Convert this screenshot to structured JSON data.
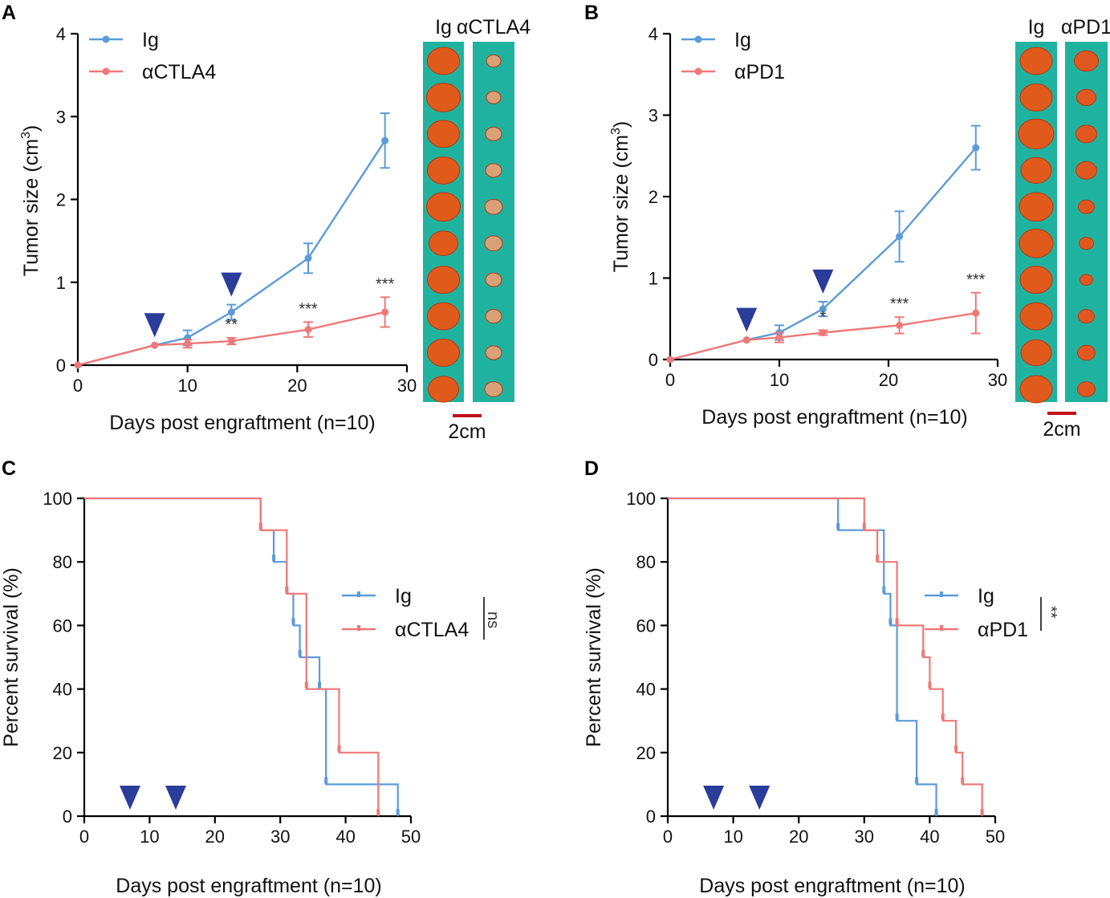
{
  "colors": {
    "ig": "#5b9bd8",
    "treat": "#f07878",
    "arrow": "#2a3d9a",
    "teal": "#1fb39f",
    "scalebar": "#c0101b",
    "tumor": "#e05a1c"
  },
  "panel_letters": {
    "a": "A",
    "b": "B",
    "c": "C",
    "d": "D"
  },
  "photos": [
    {
      "panel": "A",
      "labels": [
        "Ig",
        "αCTLA4"
      ],
      "scale_label": "2cm"
    },
    {
      "panel": "B",
      "labels": [
        "Ig",
        "αPD1"
      ],
      "scale_label": "2cm"
    }
  ],
  "chart_data": [
    {
      "panel": "A",
      "type": "line",
      "xlabel": "Days post engraftment (n=10)",
      "ylabel": "Tumor size (cm³)",
      "ylabel_main": "Tumor size (cm",
      "ylabel_sup": "3",
      "ylabel_end": ")",
      "xlim": [
        0,
        30
      ],
      "ylim": [
        0,
        4
      ],
      "xticks": [
        "0",
        "10",
        "20",
        "30"
      ],
      "yticks": [
        "0",
        "1",
        "2",
        "3",
        "4"
      ],
      "treatment_days": [
        7,
        14
      ],
      "legend": [
        "Ig",
        "αCTLA4"
      ],
      "series": [
        {
          "name": "Ig",
          "x": [
            0,
            7,
            10,
            14,
            21,
            28
          ],
          "y": [
            0,
            0.24,
            0.33,
            0.64,
            1.29,
            2.71
          ],
          "err": [
            0,
            0,
            0.09,
            0.09,
            0.18,
            0.33
          ]
        },
        {
          "name": "αCTLA4",
          "x": [
            0,
            7,
            10,
            14,
            21,
            28
          ],
          "y": [
            0,
            0.24,
            0.26,
            0.29,
            0.43,
            0.64
          ],
          "err": [
            0,
            0,
            0.05,
            0.04,
            0.09,
            0.18
          ]
        }
      ],
      "annotations": [
        {
          "x": 14,
          "text": "**"
        },
        {
          "x": 21,
          "text": "***"
        },
        {
          "x": 28,
          "text": "***"
        }
      ]
    },
    {
      "panel": "B",
      "type": "line",
      "xlabel": "Days post engraftment (n=10)",
      "ylabel": "Tumor size (cm³)",
      "ylabel_main": "Tumor size (cm",
      "ylabel_sup": "3",
      "ylabel_end": ")",
      "xlim": [
        0,
        30
      ],
      "ylim": [
        0,
        4
      ],
      "xticks": [
        "0",
        "10",
        "20",
        "30"
      ],
      "yticks": [
        "0",
        "1",
        "2",
        "3",
        "4"
      ],
      "treatment_days": [
        7,
        14
      ],
      "legend": [
        "Ig",
        "αPD1"
      ],
      "series": [
        {
          "name": "Ig",
          "x": [
            0,
            7,
            10,
            14,
            21,
            28
          ],
          "y": [
            0,
            0.24,
            0.33,
            0.62,
            1.51,
            2.6
          ],
          "err": [
            0,
            0,
            0.09,
            0.09,
            0.31,
            0.27
          ]
        },
        {
          "name": "αPD1",
          "x": [
            0,
            7,
            10,
            14,
            21,
            28
          ],
          "y": [
            0,
            0.24,
            0.27,
            0.33,
            0.42,
            0.57
          ],
          "err": [
            0,
            0,
            0.06,
            0.03,
            0.1,
            0.25
          ]
        }
      ],
      "annotations": [
        {
          "x": 14,
          "text": "*"
        },
        {
          "x": 21,
          "text": "***"
        },
        {
          "x": 28,
          "text": "***"
        }
      ]
    },
    {
      "panel": "C",
      "type": "survival",
      "xlabel": "Days post engraftment (n=10)",
      "ylabel": "Percent survival (%)",
      "xlim": [
        0,
        50
      ],
      "ylim": [
        0,
        100
      ],
      "xticks": [
        "0",
        "10",
        "20",
        "30",
        "40",
        "50"
      ],
      "yticks": [
        "0",
        "20",
        "40",
        "60",
        "80",
        "100"
      ],
      "treatment_days": [
        7,
        14
      ],
      "legend": [
        "Ig",
        "αCTLA4"
      ],
      "significance": "ns",
      "series": [
        {
          "name": "Ig",
          "times": [
            27,
            29,
            31,
            32,
            33,
            36,
            37,
            48
          ],
          "survival": [
            90,
            80,
            70,
            60,
            50,
            40,
            10,
            0
          ]
        },
        {
          "name": "αCTLA4",
          "times": [
            27,
            31,
            34,
            39,
            45
          ],
          "survival": [
            90,
            70,
            40,
            20,
            0
          ]
        }
      ]
    },
    {
      "panel": "D",
      "type": "survival",
      "xlabel": "Days post engraftment (n=10)",
      "ylabel": "Percent survival (%)",
      "xlim": [
        0,
        50
      ],
      "ylim": [
        0,
        100
      ],
      "xticks": [
        "0",
        "10",
        "20",
        "30",
        "40",
        "50"
      ],
      "yticks": [
        "0",
        "20",
        "40",
        "60",
        "80",
        "100"
      ],
      "treatment_days": [
        7,
        14
      ],
      "legend": [
        "Ig",
        "αPD1"
      ],
      "significance": "**",
      "series": [
        {
          "name": "Ig",
          "times": [
            26,
            33,
            34,
            35,
            38,
            41
          ],
          "survival": [
            90,
            70,
            60,
            30,
            10,
            0
          ]
        },
        {
          "name": "αPD1",
          "times": [
            30,
            32,
            35,
            39,
            40,
            42,
            44,
            45,
            48
          ],
          "survival": [
            90,
            80,
            60,
            50,
            40,
            30,
            20,
            10,
            0
          ]
        }
      ]
    }
  ]
}
